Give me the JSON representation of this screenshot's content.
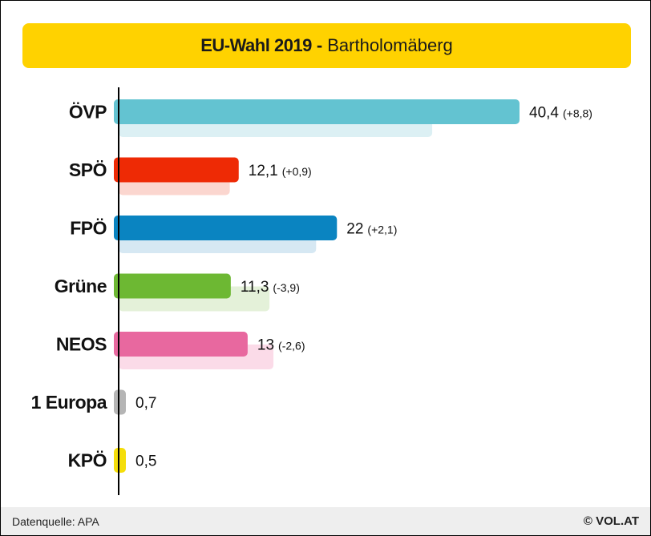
{
  "title": {
    "main": "EU-Wahl 2019",
    "separator": "-",
    "sub": "Bartholomäberg"
  },
  "footer": {
    "source": "Datenquelle: APA",
    "brand": "© VOL.AT"
  },
  "chart_data": {
    "type": "bar",
    "orientation": "horizontal",
    "categories": [
      "ÖVP",
      "SPÖ",
      "FPÖ",
      "Grüne",
      "NEOS",
      "1 Europa",
      "KPÖ"
    ],
    "series": [
      {
        "values": [
          40.4,
          12.1,
          22,
          11.3,
          13,
          0.7,
          0.5
        ]
      },
      {
        "values": [
          31.6,
          11.2,
          19.9,
          15.2,
          15.6,
          null,
          null
        ]
      }
    ],
    "value_labels": [
      "40,4",
      "12,1",
      "22",
      "11,3",
      "13",
      "0,7",
      "0,5"
    ],
    "change_labels": [
      "(+8,8)",
      "(+0,9)",
      "(+2,1)",
      "(-3,9)",
      "(-2,6)",
      "",
      ""
    ],
    "colors": [
      "#63c3d1",
      "#ee2a05",
      "#0a84c1",
      "#6db833",
      "#e8689f",
      "#b5b5b5",
      "#f5de0a"
    ],
    "previous_colors": [
      "#dcf0f4",
      "#fbd6cf",
      "#d6e8f3",
      "#e4f1d9",
      "#fbdbe8",
      "#ededed",
      "#fcf6c8"
    ],
    "xlim": [
      0,
      40.4
    ],
    "grid": false,
    "legend": "none"
  }
}
